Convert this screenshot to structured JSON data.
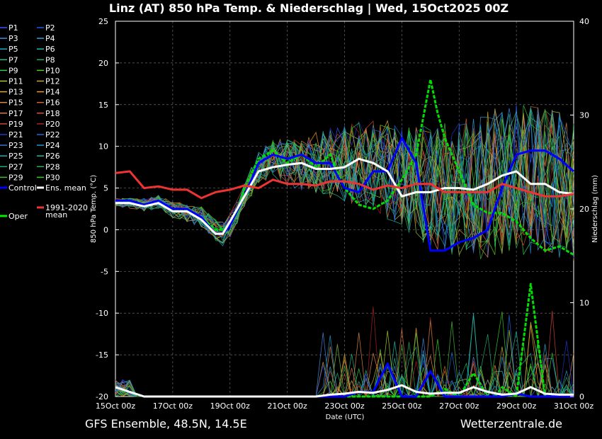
{
  "title": "Linz  (AT)  850 hPa Temp. & Niederschlag | Wed, 15Oct2025 00Z",
  "footer_left": "GFS Ensemble, 48.5N, 14.5E",
  "footer_right": "Wetterzentrale.de",
  "chart_data": {
    "type": "line",
    "xlabel": "Date (UTC)",
    "ylabel": "850 hPa Temp. (°C)",
    "ylabel_right": "Niederschlag (mm)",
    "ylim": [
      -20,
      25
    ],
    "ylim_right": [
      0,
      40
    ],
    "yticks": [
      25,
      20,
      15,
      10,
      5,
      0,
      -5,
      -10,
      -15,
      -20
    ],
    "yticks_right": [
      40,
      30,
      20,
      10,
      0
    ],
    "x_tick_labels": [
      "15Oct 00z",
      "17Oct 00z",
      "19Oct 00z",
      "21Oct 00z",
      "23Oct 00z",
      "25Oct 00z",
      "27Oct 00z",
      "29Oct 00z",
      "31Oct 00z"
    ],
    "x_range_days": [
      0,
      16
    ],
    "grid": true,
    "legend_placement": "left",
    "legend": [
      {
        "label": "P1",
        "color": "#3355ff"
      },
      {
        "label": "P2",
        "color": "#2255ee"
      },
      {
        "label": "P3",
        "color": "#4488dd"
      },
      {
        "label": "P4",
        "color": "#3399dd"
      },
      {
        "label": "P5",
        "color": "#22aacc"
      },
      {
        "label": "P6",
        "color": "#22bbaa"
      },
      {
        "label": "P7",
        "color": "#22bb88"
      },
      {
        "label": "P8",
        "color": "#22aa66"
      },
      {
        "label": "P9",
        "color": "#33cc44"
      },
      {
        "label": "P10",
        "color": "#55cc22"
      },
      {
        "label": "P11",
        "color": "#aacc33"
      },
      {
        "label": "P12",
        "color": "#ccaa33"
      },
      {
        "label": "P13",
        "color": "#ddaa22"
      },
      {
        "label": "P14",
        "color": "#ee9922"
      },
      {
        "label": "P15",
        "color": "#dd8844"
      },
      {
        "label": "P16",
        "color": "#cc6633"
      },
      {
        "label": "P17",
        "color": "#dd7744"
      },
      {
        "label": "P18",
        "color": "#cc5533"
      },
      {
        "label": "P19",
        "color": "#cc4433"
      },
      {
        "label": "P20",
        "color": "#aa2222"
      },
      {
        "label": "P21",
        "color": "#2233cc"
      },
      {
        "label": "P22",
        "color": "#2266dd"
      },
      {
        "label": "P23",
        "color": "#3377cc"
      },
      {
        "label": "P24",
        "color": "#2299cc"
      },
      {
        "label": "P25",
        "color": "#22aabb"
      },
      {
        "label": "P26",
        "color": "#22bb99"
      },
      {
        "label": "P27",
        "color": "#22aa77"
      },
      {
        "label": "P28",
        "color": "#33aa55"
      },
      {
        "label": "P29",
        "color": "#44bb33"
      },
      {
        "label": "P30",
        "color": "#33cc22"
      },
      {
        "label": "Control",
        "color": "#0000ff"
      },
      {
        "label": "Ens. mean",
        "color": "#ffffff"
      },
      {
        "label": "Oper",
        "color": "#00ee00"
      },
      {
        "label": "1991-2020 mean",
        "color": "#ee3333"
      }
    ],
    "series": [
      {
        "name": "Oper",
        "axis": "temp",
        "color": "#00dd00",
        "width": 3,
        "dashed": true,
        "x": [
          0,
          0.5,
          1,
          1.5,
          2,
          2.5,
          3,
          3.5,
          3.75,
          4,
          4.25,
          4.5,
          5,
          5.5,
          6,
          6.5,
          7,
          7.5,
          8,
          8.5,
          9,
          9.5,
          10,
          10.5,
          11,
          11.25,
          11.5,
          11.75,
          12,
          12.5,
          13,
          13.5,
          14,
          14.5,
          15,
          15.5,
          16
        ],
        "y": [
          3.5,
          3.5,
          3,
          3.5,
          2.5,
          2.5,
          1.5,
          0,
          0,
          0.5,
          2,
          5,
          8.5,
          9.5,
          8,
          9,
          7.5,
          9,
          5,
          3,
          2.5,
          3.5,
          6,
          9,
          18,
          14,
          11,
          9,
          7,
          3,
          2,
          2,
          1,
          -1,
          -2.5,
          -2,
          -3
        ]
      },
      {
        "name": "Control",
        "axis": "temp",
        "color": "#0000ff",
        "width": 3,
        "x": [
          0,
          0.5,
          1,
          1.5,
          2,
          2.5,
          3,
          3.5,
          3.75,
          4,
          4.5,
          5,
          5.5,
          6,
          6.5,
          7,
          7.5,
          8,
          8.5,
          9,
          9.5,
          10,
          10.5,
          11,
          11.5,
          12,
          12.5,
          13,
          13.5,
          14,
          14.5,
          15,
          15.5,
          16
        ],
        "y": [
          3.5,
          3.5,
          3,
          3.5,
          2.5,
          2.5,
          1.5,
          -0.5,
          -0.5,
          0.5,
          4,
          8,
          9,
          8.5,
          9,
          8,
          8,
          5,
          4.5,
          7,
          7,
          11,
          8,
          -2.5,
          -2.5,
          -1.5,
          -1,
          0,
          5,
          9,
          9.5,
          9.5,
          8.5,
          7
        ]
      },
      {
        "name": "Ens. mean",
        "axis": "temp",
        "color": "#ffffff",
        "width": 3,
        "x": [
          0,
          0.5,
          1,
          1.5,
          2,
          2.5,
          3,
          3.5,
          3.75,
          4,
          4.5,
          5,
          5.5,
          6,
          6.5,
          7,
          7.5,
          8,
          8.5,
          9,
          9.5,
          10,
          10.5,
          11,
          11.5,
          12,
          12.5,
          13,
          13.5,
          14,
          14.5,
          15,
          15.5,
          16
        ],
        "y": [
          3.2,
          3.2,
          2.8,
          3.2,
          2.2,
          2.2,
          1.2,
          -0.5,
          -0.5,
          1,
          4,
          7,
          7.5,
          7.8,
          8,
          7.3,
          7.3,
          7.5,
          8.5,
          8,
          7,
          4,
          4.5,
          4.5,
          5,
          5,
          4.8,
          5.5,
          6.5,
          7,
          5.5,
          5.5,
          4.5,
          4.3
        ]
      },
      {
        "name": "1991-2020 mean",
        "axis": "temp",
        "color": "#ee3333",
        "width": 3,
        "x": [
          0,
          0.5,
          1,
          1.5,
          2,
          2.5,
          3,
          3.5,
          4,
          4.5,
          5,
          5.5,
          6,
          6.5,
          7,
          7.5,
          8,
          8.5,
          9,
          9.5,
          10,
          10.5,
          11,
          11.5,
          12,
          12.5,
          13,
          13.5,
          14,
          14.5,
          15,
          15.5,
          16
        ],
        "y": [
          6.8,
          7,
          5,
          5.2,
          4.8,
          4.8,
          3.8,
          4.5,
          4.8,
          5.3,
          5,
          6,
          5.5,
          5.5,
          5.3,
          5.8,
          5.8,
          5.5,
          4.8,
          5.3,
          5,
          5.5,
          5.5,
          4.5,
          4.5,
          4.5,
          4.5,
          5.5,
          5,
          4.5,
          4,
          4,
          4.3
        ]
      },
      {
        "name": "Oper precip",
        "axis": "precip",
        "color": "#00dd00",
        "width": 3,
        "dashed": true,
        "x": [
          0,
          1,
          2,
          3,
          4,
          5,
          6,
          7,
          8,
          9,
          10,
          10.5,
          11,
          11.5,
          12,
          12.5,
          13,
          13.25,
          13.5,
          14,
          14.5,
          15,
          15.5,
          16
        ],
        "y": [
          1,
          0,
          0,
          0,
          0,
          0,
          0,
          0,
          0,
          0,
          0,
          0,
          0,
          0.8,
          0,
          2.5,
          0,
          0,
          1,
          0,
          12,
          0,
          0,
          0
        ]
      },
      {
        "name": "Control precip",
        "axis": "precip",
        "color": "#0000ff",
        "width": 3,
        "x": [
          0,
          1,
          2,
          3,
          4,
          5,
          6,
          7,
          8,
          8.5,
          9,
          9.5,
          10,
          10.5,
          11,
          11.5,
          12,
          12.5,
          13,
          13.5,
          14,
          14.5,
          15,
          15.5,
          16
        ],
        "y": [
          1,
          0,
          0,
          0,
          0,
          0,
          0,
          0,
          0,
          0.5,
          0.5,
          3.5,
          0,
          0,
          2.7,
          0,
          0,
          0,
          0,
          0,
          0.3,
          0,
          0,
          0,
          0
        ]
      },
      {
        "name": "Ens. mean precip",
        "axis": "precip",
        "color": "#ffffff",
        "width": 3,
        "x": [
          0,
          0.5,
          1,
          2,
          3,
          4,
          5,
          6,
          7,
          7.5,
          8,
          8.5,
          9,
          9.5,
          10,
          10.5,
          11,
          11.5,
          12,
          12.5,
          13,
          13.5,
          14,
          14.5,
          15,
          15.5,
          16
        ],
        "y": [
          1,
          0.5,
          0,
          0,
          0,
          0,
          0,
          0,
          0,
          0.2,
          0.3,
          0.5,
          0.4,
          0.7,
          1.2,
          0.5,
          0.3,
          0.4,
          0.4,
          1,
          0.5,
          0.2,
          0.3,
          1,
          0.3,
          0.2,
          0.2
        ]
      }
    ]
  }
}
